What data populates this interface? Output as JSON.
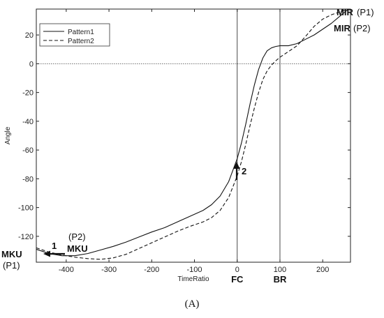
{
  "chart_data": {
    "type": "line",
    "title": "",
    "xlabel": "TimeRatio",
    "ylabel": "Angle",
    "xlim": [
      -470,
      265
    ],
    "ylim": [
      -138,
      38
    ],
    "xticks": [
      -400,
      -300,
      -200,
      -100,
      0,
      100,
      200
    ],
    "yticks": [
      20,
      0,
      -20,
      -40,
      -60,
      -80,
      -100,
      -120
    ],
    "grid": false,
    "legend_position": "top-left",
    "reference_lines": {
      "horizontal_dotted_y": 0,
      "vertical_x": [
        0,
        100
      ],
      "vertical_labels": [
        "FC",
        "BR"
      ]
    },
    "series": [
      {
        "name": "Pattern1",
        "style": "solid",
        "x": [
          -470,
          -440,
          -410,
          -380,
          -350,
          -320,
          -290,
          -260,
          -230,
          -200,
          -170,
          -140,
          -110,
          -80,
          -60,
          -40,
          -20,
          0,
          10,
          20,
          30,
          40,
          50,
          60,
          70,
          80,
          90,
          100,
          110,
          120,
          140,
          160,
          180,
          200,
          220,
          240,
          260
        ],
        "y": [
          -129,
          -132,
          -133.5,
          -133.5,
          -132,
          -129.5,
          -127,
          -124,
          -120.5,
          -117,
          -114,
          -110,
          -106,
          -102,
          -98,
          -92,
          -82,
          -66,
          -55,
          -42,
          -28,
          -15,
          -4,
          4,
          9,
          11,
          12,
          12.5,
          12.5,
          12.5,
          14,
          17,
          20,
          24,
          28,
          33,
          38
        ]
      },
      {
        "name": "Pattern2",
        "style": "dashed",
        "x": [
          -470,
          -440,
          -410,
          -380,
          -350,
          -320,
          -290,
          -260,
          -230,
          -200,
          -170,
          -140,
          -110,
          -80,
          -60,
          -40,
          -20,
          0,
          10,
          20,
          30,
          40,
          50,
          60,
          70,
          80,
          90,
          100,
          110,
          120,
          140,
          160,
          180,
          200,
          220,
          240,
          260
        ],
        "y": [
          -128,
          -131,
          -133,
          -134.5,
          -135.5,
          -136,
          -135,
          -132.5,
          -128.5,
          -124.5,
          -120.5,
          -116.5,
          -113,
          -110,
          -107,
          -102,
          -93,
          -78,
          -68,
          -56,
          -43,
          -31,
          -20,
          -11,
          -5,
          -1,
          2,
          4.5,
          6.5,
          8.5,
          12.5,
          19,
          26,
          31,
          34,
          36,
          38
        ]
      }
    ],
    "annotations": [
      {
        "bold": "MKU",
        "text": "(P1)"
      },
      {
        "bold": "MKU",
        "text": "(P2)"
      },
      {
        "bold": "MIR",
        "text": "(P1)"
      },
      {
        "bold": "MIR",
        "text": "(P2)"
      },
      {
        "bold": "1",
        "text": ""
      },
      {
        "bold": "2",
        "text": ""
      }
    ]
  },
  "panel_label": "(A)"
}
